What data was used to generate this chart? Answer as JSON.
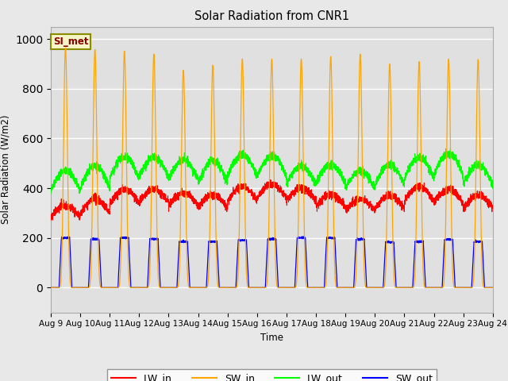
{
  "title": "Solar Radiation from CNR1",
  "xlabel": "Time",
  "ylabel": "Solar Radiation (W/m2)",
  "ylim": [
    -100,
    1050
  ],
  "background_color": "#e8e8e8",
  "plot_bg_color": "#e0e0e0",
  "annotation_text": "SI_met",
  "annotation_color": "#8B0000",
  "annotation_bg": "#f5f5c8",
  "annotation_border": "#8B8B00",
  "x_tick_labels": [
    "Aug 9",
    "Aug 10",
    "Aug 11",
    "Aug 12",
    "Aug 13",
    "Aug 14",
    "Aug 15",
    "Aug 16",
    "Aug 17",
    "Aug 18",
    "Aug 19",
    "Aug 20",
    "Aug 21",
    "Aug 22",
    "Aug 23",
    "Aug 24"
  ],
  "num_days": 15,
  "points_per_day": 288,
  "sw_in_peaks": [
    965,
    958,
    952,
    940,
    875,
    895,
    920,
    920,
    920,
    930,
    940,
    900,
    910,
    920,
    918
  ],
  "sw_out_peaks": [
    200,
    195,
    200,
    195,
    185,
    185,
    190,
    195,
    200,
    200,
    195,
    183,
    185,
    193,
    185
  ],
  "lw_in_base": [
    280,
    300,
    340,
    345,
    330,
    320,
    350,
    360,
    350,
    325,
    310,
    320,
    350,
    340,
    320
  ],
  "lw_in_amp": [
    50,
    55,
    55,
    50,
    50,
    55,
    55,
    55,
    50,
    50,
    45,
    50,
    55,
    55,
    50
  ],
  "lw_out_base": [
    390,
    400,
    440,
    445,
    435,
    420,
    450,
    450,
    415,
    420,
    400,
    415,
    440,
    450,
    415
  ],
  "lw_out_amp": [
    80,
    90,
    85,
    80,
    80,
    90,
    85,
    80,
    75,
    75,
    70,
    80,
    85,
    90,
    80
  ]
}
